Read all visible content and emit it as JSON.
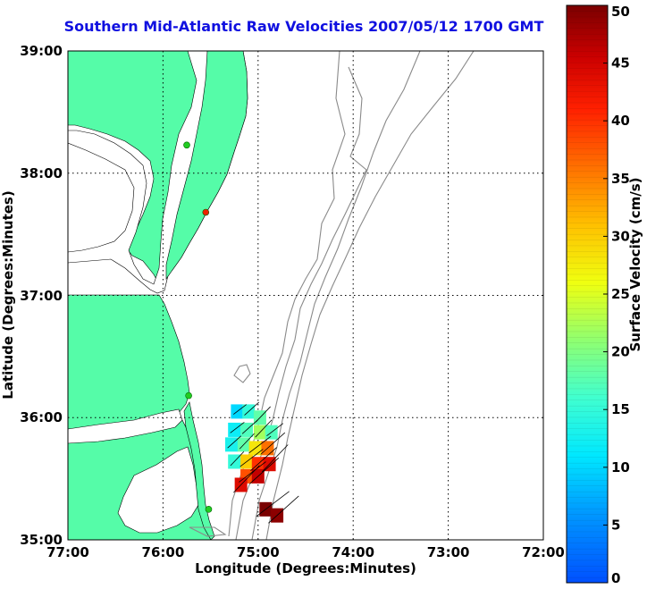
{
  "title": "Southern Mid-Atlantic Raw Velocities 2007/05/12 1700 GMT",
  "xlabel": "Longitude (Degrees:Minutes)",
  "ylabel": "Latitude (Degrees:Minutes)",
  "x_ticks": [
    "77:00",
    "76:00",
    "75:00",
    "74:00",
    "73:00",
    "72:00"
  ],
  "y_ticks": [
    "39:00",
    "38:00",
    "37:00",
    "36:00",
    "35:00"
  ],
  "colorbar": {
    "label": "Surface Velocity (cm/s)",
    "range": [
      0,
      50
    ],
    "ticks": [
      "0",
      "5",
      "10",
      "15",
      "20",
      "25",
      "30",
      "35",
      "40",
      "45",
      "50"
    ]
  },
  "colors": {
    "land": "#55fca8",
    "title": "#1010e0",
    "bathymetry": "#8a8a8a",
    "station_green": "#22cc22",
    "station_red": "#ee2200"
  },
  "chart_data": {
    "type": "map",
    "xlim": [
      -77.0,
      -72.0
    ],
    "ylim": [
      35.0,
      39.0
    ],
    "grid": true,
    "stations": [
      {
        "lon": -75.75,
        "lat": 38.23,
        "color": "green"
      },
      {
        "lon": -75.55,
        "lat": 37.68,
        "color": "red"
      },
      {
        "lon": -75.73,
        "lat": 36.18,
        "color": "green"
      },
      {
        "lon": -75.52,
        "lat": 35.25,
        "color": "green"
      }
    ],
    "velocity_cells": [
      {
        "lon": -75.22,
        "lat": 36.05,
        "speed": 10
      },
      {
        "lon": -75.1,
        "lat": 36.05,
        "speed": 15
      },
      {
        "lon": -74.98,
        "lat": 36.0,
        "speed": 18
      },
      {
        "lon": -75.25,
        "lat": 35.9,
        "speed": 12
      },
      {
        "lon": -75.12,
        "lat": 35.9,
        "speed": 17
      },
      {
        "lon": -74.98,
        "lat": 35.88,
        "speed": 22
      },
      {
        "lon": -74.86,
        "lat": 35.88,
        "speed": 17
      },
      {
        "lon": -75.28,
        "lat": 35.78,
        "speed": 13
      },
      {
        "lon": -75.15,
        "lat": 35.78,
        "speed": 18
      },
      {
        "lon": -75.03,
        "lat": 35.75,
        "speed": 28
      },
      {
        "lon": -74.9,
        "lat": 35.75,
        "speed": 36
      },
      {
        "lon": -75.25,
        "lat": 35.64,
        "speed": 15
      },
      {
        "lon": -75.12,
        "lat": 35.64,
        "speed": 30
      },
      {
        "lon": -75.0,
        "lat": 35.62,
        "speed": 40
      },
      {
        "lon": -74.88,
        "lat": 35.62,
        "speed": 44
      },
      {
        "lon": -75.12,
        "lat": 35.52,
        "speed": 38
      },
      {
        "lon": -75.0,
        "lat": 35.52,
        "speed": 46
      },
      {
        "lon": -75.18,
        "lat": 35.45,
        "speed": 44
      },
      {
        "lon": -74.92,
        "lat": 35.25,
        "speed": 50
      },
      {
        "lon": -74.8,
        "lat": 35.2,
        "speed": 49
      }
    ]
  }
}
